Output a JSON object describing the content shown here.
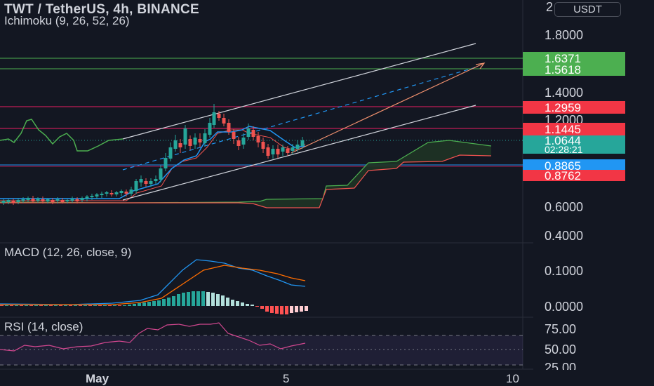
{
  "header": {
    "symbol_line": "TWT / TetherUS, 4h, BINANCE",
    "indicator_ichimoku": "Ichimoku (9, 26, 52, 26)",
    "indicator_macd": "MACD (12, 26, close, 9)",
    "indicator_rsi": "RSI (14, close)",
    "currency": "USDT",
    "currency_top_digit": "2"
  },
  "price_axis": {
    "ticks": [
      "1.8000",
      "1.4000",
      "1.2000",
      "0.6000",
      "0.4000"
    ]
  },
  "price_labels": [
    {
      "name": "level-1-6371",
      "value": "1.6371",
      "color": "#4caf50"
    },
    {
      "name": "level-1-5618",
      "value": "1.5618",
      "color": "#4caf50"
    },
    {
      "name": "level-1-2959",
      "value": "1.2959",
      "color": "#f23645"
    },
    {
      "name": "level-1-1445",
      "value": "1.1445",
      "color": "#f23645"
    },
    {
      "name": "last-price",
      "value": "1.0644",
      "color": "#26a69a"
    },
    {
      "name": "ichimoku-base",
      "value": "0.8865",
      "color": "#2196f3"
    },
    {
      "name": "ichimoku-conversion",
      "value": "0.8762",
      "color": "#f23645"
    }
  ],
  "countdown": "02:28:21",
  "macd_axis": {
    "ticks": [
      "0.1000",
      "0.0000"
    ]
  },
  "rsi_axis": {
    "ticks": [
      "75.00",
      "50.00",
      "25.00"
    ]
  },
  "time_axis": {
    "labels": [
      "May",
      "5",
      "10"
    ]
  },
  "colors": {
    "background": "#131722",
    "bull": "#26a69a",
    "bear": "#ef5350",
    "grid": "#2a2e39",
    "text": "#d1d4dc"
  }
}
